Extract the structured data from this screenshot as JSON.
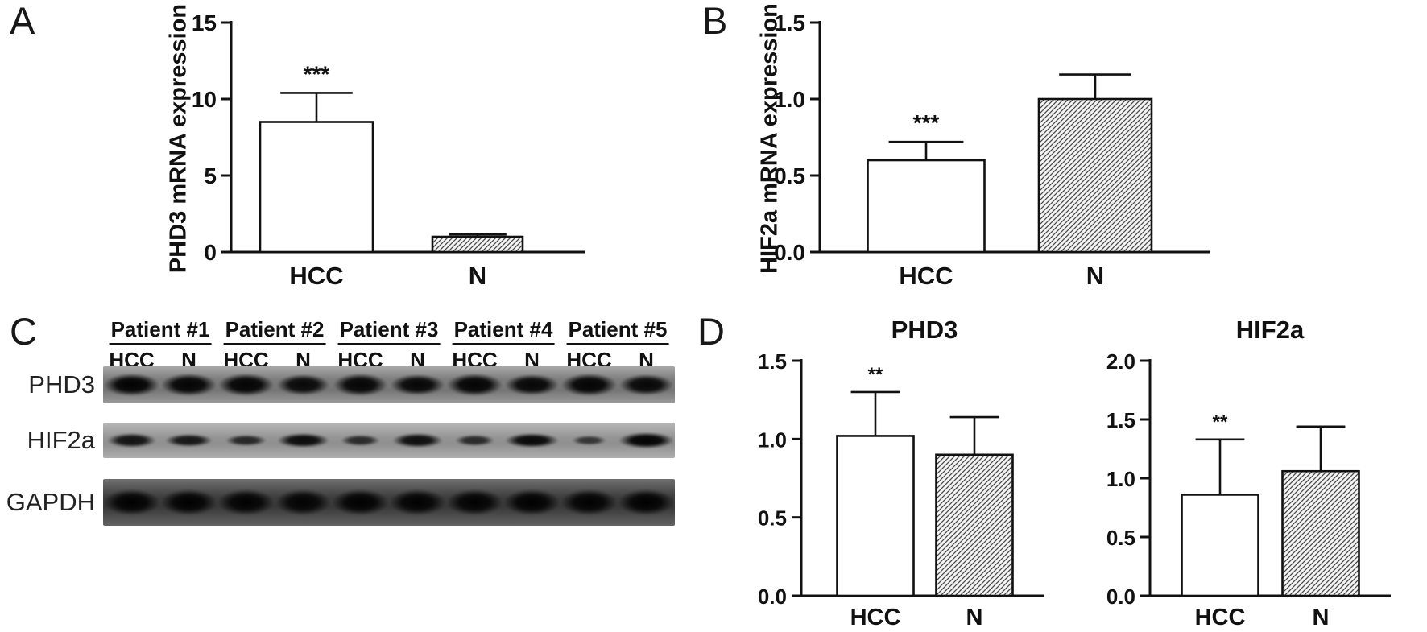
{
  "panels": {
    "A": "A",
    "B": "B",
    "C": "C",
    "D": "D"
  },
  "chart_data": [
    {
      "id": "panelA",
      "type": "bar",
      "title": "",
      "ylabel": "PHD3 mRNA expression",
      "categories": [
        "HCC",
        "N"
      ],
      "values": [
        8.5,
        1.0
      ],
      "errors": [
        1.9,
        0.15
      ],
      "significance": [
        "***",
        ""
      ],
      "ylim": [
        0,
        15
      ],
      "yticks": [
        0,
        5,
        10,
        15
      ],
      "ytick_labels": [
        "0",
        "5",
        "10",
        "15"
      ],
      "bar_styles": [
        "open",
        "hatched"
      ],
      "legend": "none",
      "grid": "off"
    },
    {
      "id": "panelB",
      "type": "bar",
      "title": "",
      "ylabel": "HIF2a mRNA expression",
      "categories": [
        "HCC",
        "N"
      ],
      "values": [
        0.6,
        1.0
      ],
      "errors": [
        0.12,
        0.16
      ],
      "significance": [
        "***",
        ""
      ],
      "ylim": [
        0,
        1.5
      ],
      "yticks": [
        0,
        0.5,
        1.0,
        1.5
      ],
      "ytick_labels": [
        "0.0",
        "0.5",
        "1.0",
        "1.5"
      ],
      "bar_styles": [
        "open",
        "hatched"
      ],
      "legend": "none",
      "grid": "off"
    },
    {
      "id": "panelD1",
      "type": "bar",
      "title": "PHD3",
      "ylabel": "",
      "categories": [
        "HCC",
        "N"
      ],
      "values": [
        1.02,
        0.9
      ],
      "errors": [
        0.28,
        0.24
      ],
      "significance": [
        "**",
        ""
      ],
      "ylim": [
        0,
        1.5
      ],
      "yticks": [
        0,
        0.5,
        1.0,
        1.5
      ],
      "ytick_labels": [
        "0.0",
        "0.5",
        "1.0",
        "1.5"
      ],
      "bar_styles": [
        "open",
        "hatched"
      ],
      "legend": "none",
      "grid": "off"
    },
    {
      "id": "panelD2",
      "type": "bar",
      "title": "HIF2a",
      "ylabel": "",
      "categories": [
        "HCC",
        "N"
      ],
      "values": [
        0.86,
        1.06
      ],
      "errors": [
        0.47,
        0.38
      ],
      "significance": [
        "**",
        ""
      ],
      "ylim": [
        0,
        2.0
      ],
      "yticks": [
        0,
        0.5,
        1.0,
        1.5,
        2.0
      ],
      "ytick_labels": [
        "0.0",
        "0.5",
        "1.0",
        "1.5",
        "2.0"
      ],
      "bar_styles": [
        "open",
        "hatched"
      ],
      "legend": "none",
      "grid": "off"
    }
  ],
  "blot": {
    "patients": [
      "Patient #1",
      "Patient #2",
      "Patient #3",
      "Patient #4",
      "Patient #5"
    ],
    "lane_labels": [
      "HCC",
      "N"
    ],
    "rows": [
      {
        "label": "PHD3",
        "bands": [
          0.95,
          0.92,
          0.93,
          0.85,
          0.9,
          0.88,
          0.92,
          0.88,
          0.93,
          0.87
        ]
      },
      {
        "label": "HIF2a",
        "bands": [
          0.75,
          0.7,
          0.5,
          0.85,
          0.45,
          0.8,
          0.45,
          0.9,
          0.3,
          0.95
        ]
      },
      {
        "label": "GAPDH",
        "bands": [
          0.95,
          0.95,
          0.92,
          0.9,
          0.95,
          0.92,
          0.93,
          0.95,
          0.92,
          0.95
        ]
      }
    ]
  }
}
